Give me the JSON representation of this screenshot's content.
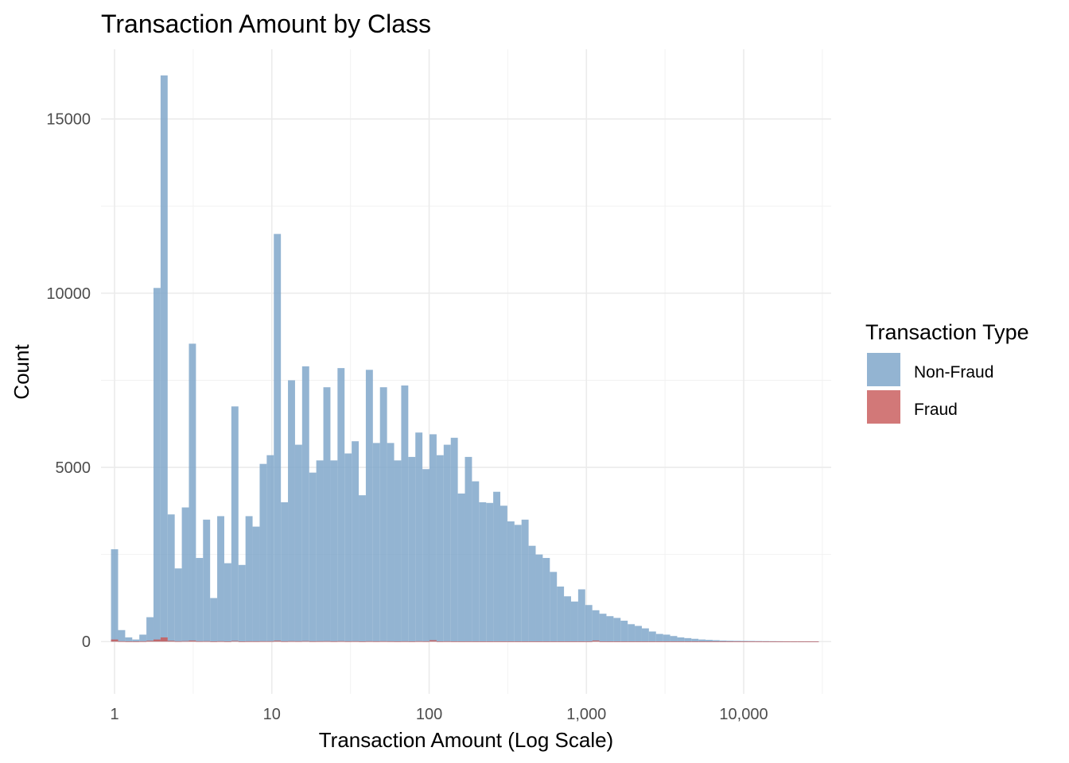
{
  "chart_data": {
    "type": "bar",
    "title": "Transaction Amount by Class",
    "xlabel": "Transaction Amount (Log Scale)",
    "ylabel": "Count",
    "x_scale": "log10",
    "xlim": [
      0.82,
      36000
    ],
    "ylim": [
      -1500,
      17000
    ],
    "x_ticks": [
      {
        "value": 1,
        "label": "1"
      },
      {
        "value": 10,
        "label": "10"
      },
      {
        "value": 100,
        "label": "100"
      },
      {
        "value": 1000,
        "label": "1,000"
      },
      {
        "value": 10000,
        "label": "10,000"
      }
    ],
    "x_minor_ticks": [
      3.162,
      31.62,
      316.2,
      3162,
      31623
    ],
    "y_ticks": [
      {
        "value": 0,
        "label": "0"
      },
      {
        "value": 5000,
        "label": "5000"
      },
      {
        "value": 10000,
        "label": "10000"
      },
      {
        "value": 15000,
        "label": "15000"
      }
    ],
    "y_minor_ticks": [
      2500,
      7500,
      12500
    ],
    "grid": true,
    "bins": {
      "start_log10": -0.0225,
      "width_log10": 0.045,
      "count": 100
    },
    "legend": {
      "title": "Transaction Type",
      "position": "right",
      "entries": [
        {
          "name": "Non-Fraud",
          "color": "#7ba3c8"
        },
        {
          "name": "Fraud",
          "color": "#c85a5a"
        }
      ]
    },
    "series": [
      {
        "name": "Non-Fraud",
        "color": "#7ba3c8",
        "values": [
          2650,
          330,
          120,
          60,
          200,
          700,
          10150,
          16250,
          3650,
          2100,
          3850,
          8550,
          2400,
          3500,
          1250,
          3600,
          2250,
          6750,
          2200,
          3600,
          3300,
          5100,
          5350,
          11700,
          4000,
          7500,
          5650,
          7900,
          4850,
          5200,
          7300,
          5200,
          7850,
          5400,
          5750,
          4200,
          7800,
          5700,
          7300,
          5700,
          5200,
          7350,
          5300,
          6000,
          4950,
          5950,
          5350,
          5650,
          5850,
          4250,
          5300,
          4600,
          4000,
          3980,
          4300,
          3900,
          3450,
          3350,
          3500,
          2750,
          2500,
          2400,
          2000,
          1580,
          1300,
          1150,
          1500,
          1050,
          900,
          800,
          730,
          680,
          600,
          500,
          450,
          380,
          290,
          220,
          200,
          160,
          120,
          100,
          80,
          60,
          50,
          40,
          30,
          25,
          22,
          20,
          18,
          15,
          12,
          10,
          8,
          6,
          5,
          5,
          4,
          3
        ]
      },
      {
        "name": "Fraud",
        "color": "#c85a5a",
        "values": [
          60,
          10,
          5,
          3,
          8,
          25,
          60,
          120,
          25,
          10,
          15,
          30,
          10,
          12,
          5,
          10,
          5,
          20,
          5,
          8,
          8,
          10,
          10,
          25,
          8,
          12,
          10,
          15,
          8,
          10,
          12,
          8,
          12,
          8,
          10,
          6,
          10,
          8,
          10,
          8,
          6,
          8,
          6,
          10,
          8,
          40,
          6,
          8,
          6,
          5,
          6,
          5,
          4,
          4,
          5,
          4,
          3,
          3,
          3,
          3,
          2,
          2,
          2,
          2,
          2,
          2,
          2,
          2,
          30,
          2,
          1,
          1,
          1,
          1,
          1,
          1,
          1,
          1,
          1,
          1,
          1,
          1,
          1,
          1,
          1,
          1,
          1,
          1,
          1,
          1,
          1,
          1,
          1,
          1,
          1,
          1,
          1,
          1,
          1,
          1
        ]
      }
    ]
  }
}
